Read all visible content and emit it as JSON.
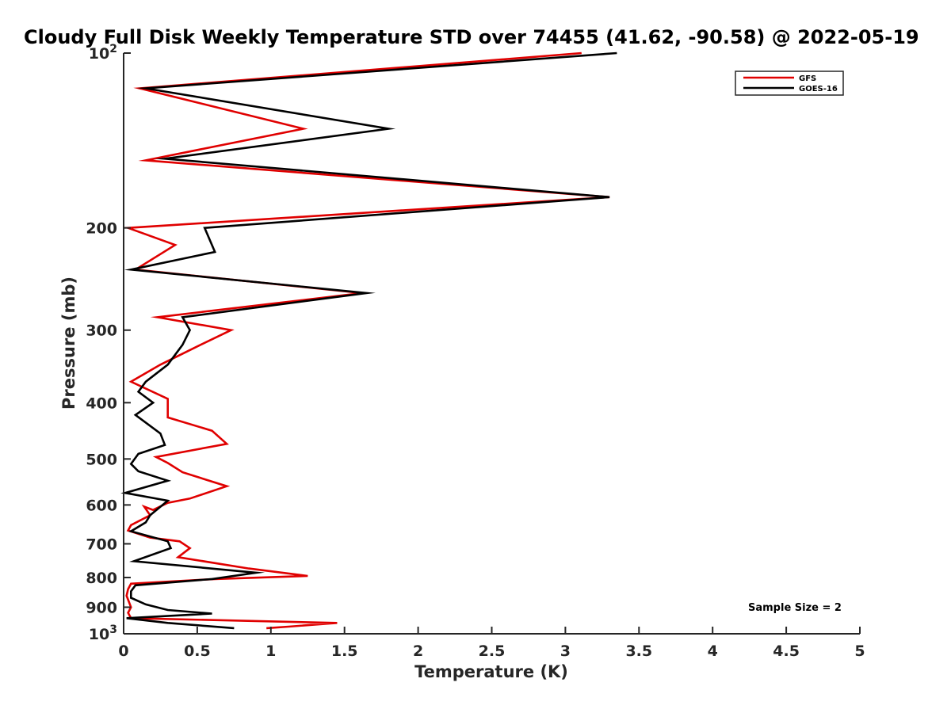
{
  "chart_data": {
    "type": "line",
    "title": "Cloudy Full Disk Weekly Temperature STD over 74455 (41.62, -90.58) @ 2022-05-19",
    "xlabel": "Temperature (K)",
    "ylabel": "Pressure (mb)",
    "xlim": [
      0,
      5
    ],
    "ylim": [
      100,
      1000
    ],
    "y_scale": "log",
    "y_reversed": true,
    "grid": false,
    "legend_position": "top-right",
    "x_ticks": [
      "0",
      "0.5",
      "1",
      "1.5",
      "2",
      "2.5",
      "3",
      "3.5",
      "4",
      "4.5",
      "5"
    ],
    "y_ticks": [
      {
        "value": 100,
        "base": "10",
        "exp": "2"
      },
      {
        "value": 200,
        "label": "200"
      },
      {
        "value": 300,
        "label": "300"
      },
      {
        "value": 400,
        "label": "400"
      },
      {
        "value": 500,
        "label": "500"
      },
      {
        "value": 600,
        "label": "600"
      },
      {
        "value": 700,
        "label": "700"
      },
      {
        "value": 800,
        "label": "800"
      },
      {
        "value": 900,
        "label": "900"
      },
      {
        "value": 1000,
        "base": "10",
        "exp": "3"
      }
    ],
    "annotation": "Sample Size = 2",
    "series": [
      {
        "name": "GFS",
        "color": "#e00000",
        "points": [
          [
            3.11,
            100
          ],
          [
            0.11,
            115
          ],
          [
            1.22,
            135
          ],
          [
            0.15,
            153
          ],
          [
            3.3,
            177
          ],
          [
            0.03,
            200
          ],
          [
            0.35,
            214
          ],
          [
            0.08,
            236
          ],
          [
            1.62,
            259
          ],
          [
            0.23,
            285
          ],
          [
            0.73,
            300
          ],
          [
            0.5,
            320
          ],
          [
            0.25,
            344
          ],
          [
            0.05,
            368
          ],
          [
            0.3,
            394
          ],
          [
            0.3,
            424
          ],
          [
            0.6,
            447
          ],
          [
            0.7,
            471
          ],
          [
            0.22,
            496
          ],
          [
            0.3,
            508
          ],
          [
            0.4,
            527
          ],
          [
            0.7,
            557
          ],
          [
            0.45,
            585
          ],
          [
            0.3,
            595
          ],
          [
            0.2,
            612
          ],
          [
            0.14,
            604
          ],
          [
            0.18,
            625
          ],
          [
            0.05,
            650
          ],
          [
            0.03,
            664
          ],
          [
            0.18,
            683
          ],
          [
            0.38,
            693
          ],
          [
            0.45,
            712
          ],
          [
            0.37,
            738
          ],
          [
            0.85,
            772
          ],
          [
            1.25,
            795
          ],
          [
            0.62,
            805
          ],
          [
            0.05,
            820
          ],
          [
            0.03,
            838
          ],
          [
            0.02,
            860
          ],
          [
            0.05,
            900
          ],
          [
            0.03,
            920
          ],
          [
            0.05,
            940
          ],
          [
            1.45,
            958
          ],
          [
            1.12,
            972
          ],
          [
            0.97,
            978
          ]
        ]
      },
      {
        "name": "GOES-16",
        "color": "#000000",
        "points": [
          [
            3.35,
            100
          ],
          [
            0.15,
            115
          ],
          [
            1.8,
            135
          ],
          [
            0.28,
            152
          ],
          [
            3.3,
            177
          ],
          [
            0.55,
            200
          ],
          [
            0.62,
            220
          ],
          [
            0.05,
            236
          ],
          [
            1.65,
            259
          ],
          [
            0.4,
            285
          ],
          [
            0.45,
            300
          ],
          [
            0.4,
            318
          ],
          [
            0.3,
            344
          ],
          [
            0.15,
            368
          ],
          [
            0.1,
            383
          ],
          [
            0.2,
            400
          ],
          [
            0.08,
            420
          ],
          [
            0.25,
            452
          ],
          [
            0.28,
            473
          ],
          [
            0.1,
            490
          ],
          [
            0.05,
            510
          ],
          [
            0.1,
            525
          ],
          [
            0.3,
            545
          ],
          [
            0.01,
            572
          ],
          [
            0.3,
            590
          ],
          [
            0.18,
            625
          ],
          [
            0.15,
            643
          ],
          [
            0.05,
            666
          ],
          [
            0.3,
            693
          ],
          [
            0.32,
            712
          ],
          [
            0.07,
            750
          ],
          [
            0.9,
            785
          ],
          [
            0.6,
            805
          ],
          [
            0.08,
            825
          ],
          [
            0.05,
            845
          ],
          [
            0.05,
            867
          ],
          [
            0.15,
            890
          ],
          [
            0.3,
            910
          ],
          [
            0.6,
            923
          ],
          [
            0.02,
            940
          ],
          [
            0.3,
            958
          ],
          [
            0.75,
            978
          ]
        ]
      }
    ]
  }
}
